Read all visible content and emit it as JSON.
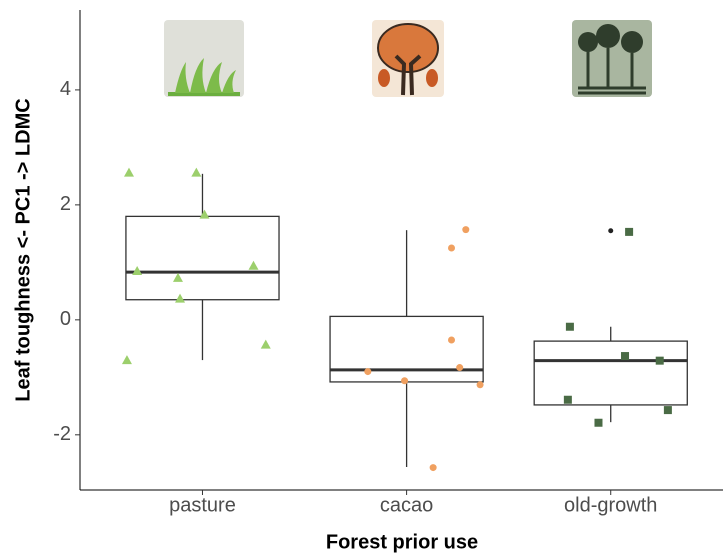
{
  "chart_data": {
    "type": "boxplot",
    "xlabel": "Forest prior use",
    "ylabel": "Leaf toughness <- PC1 -> LDMC",
    "categories": [
      "pasture",
      "cacao",
      "old-growth"
    ],
    "xlim": [
      0.4,
      3.55
    ],
    "ylim": [
      -2.96,
      5.39
    ],
    "yticks": [
      -2,
      0,
      2,
      4
    ],
    "grid": false,
    "boxes": [
      {
        "whisker_low": -0.7,
        "q1": 0.35,
        "median": 0.83,
        "q3": 1.8,
        "whisker_high": 2.54,
        "outliers": []
      },
      {
        "whisker_low": -2.56,
        "q1": -1.08,
        "median": -0.87,
        "q3": 0.06,
        "whisker_high": 1.56,
        "outliers": []
      },
      {
        "whisker_low": -1.78,
        "q1": -1.48,
        "median": -0.71,
        "q3": -0.37,
        "whisker_high": -0.12,
        "outliers": [
          1.55
        ]
      }
    ],
    "points": [
      {
        "color": "#9ccf6c",
        "marker": "triangle",
        "x": [
          0.64,
          0.97,
          1.01,
          0.68,
          0.88,
          0.89,
          1.25,
          0.63,
          1.31
        ],
        "values": [
          2.56,
          2.56,
          1.83,
          0.85,
          0.73,
          0.37,
          0.94,
          -0.7,
          -0.43
        ]
      },
      {
        "color": "#f0a060",
        "marker": "circle",
        "x": [
          2.29,
          2.22,
          2.22,
          2.26,
          2.36,
          1.81,
          1.99,
          2.13
        ],
        "values": [
          1.57,
          1.25,
          -0.35,
          -0.83,
          -1.13,
          -0.9,
          -1.06,
          -2.57
        ]
      },
      {
        "color": "#4a6b45",
        "marker": "square",
        "x": [
          3.09,
          2.8,
          3.07,
          3.24,
          2.79,
          3.28,
          2.94
        ],
        "values": [
          1.53,
          -0.12,
          -0.63,
          -0.71,
          -1.39,
          -1.57,
          -1.79
        ]
      }
    ]
  }
}
